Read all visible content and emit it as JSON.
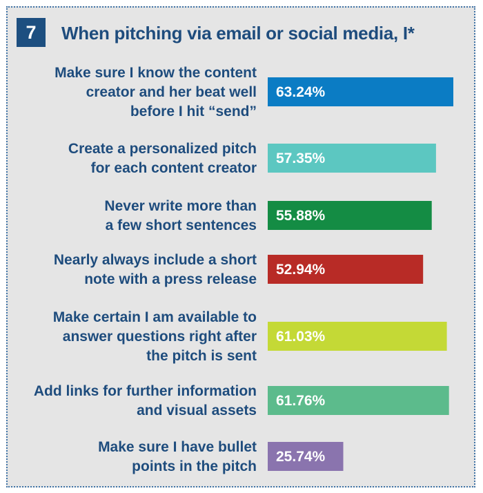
{
  "badge": "7",
  "title": "When pitching via email or social media, I*",
  "colors": {
    "title": "#1e4c7d",
    "badge_bg": "#1d4f80",
    "panel_bg": "#e5e5e5",
    "border": "#3f73a6"
  },
  "chart_data": {
    "type": "bar",
    "orientation": "horizontal",
    "title": "When pitching via email or social media, I*",
    "categories": [
      [
        "Make sure I know the content",
        "creator and her beat well",
        "before I hit “send”"
      ],
      [
        "Create a personalized pitch",
        "for each content creator"
      ],
      [
        "Never write more than",
        "a few short sentences"
      ],
      [
        "Nearly always include a short",
        "note with a press release"
      ],
      [
        "Make certain I am available to",
        "answer questions right after",
        "the pitch is sent"
      ],
      [
        "Add links for further information",
        "and visual assets"
      ],
      [
        "Make sure I have bullet",
        "points in the pitch"
      ]
    ],
    "values": [
      63.24,
      57.35,
      55.88,
      52.94,
      61.03,
      61.76,
      25.74
    ],
    "value_labels": [
      "63.24%",
      "57.35%",
      "55.88%",
      "52.94%",
      "61.03%",
      "61.76%",
      "25.74%"
    ],
    "bar_colors": [
      "#0b7cc4",
      "#5cc7c1",
      "#148c44",
      "#b82b26",
      "#c4d936",
      "#5cbb8c",
      "#8a74ae"
    ],
    "xlim": [
      0,
      63.24
    ],
    "grid": false,
    "legend": "none"
  }
}
